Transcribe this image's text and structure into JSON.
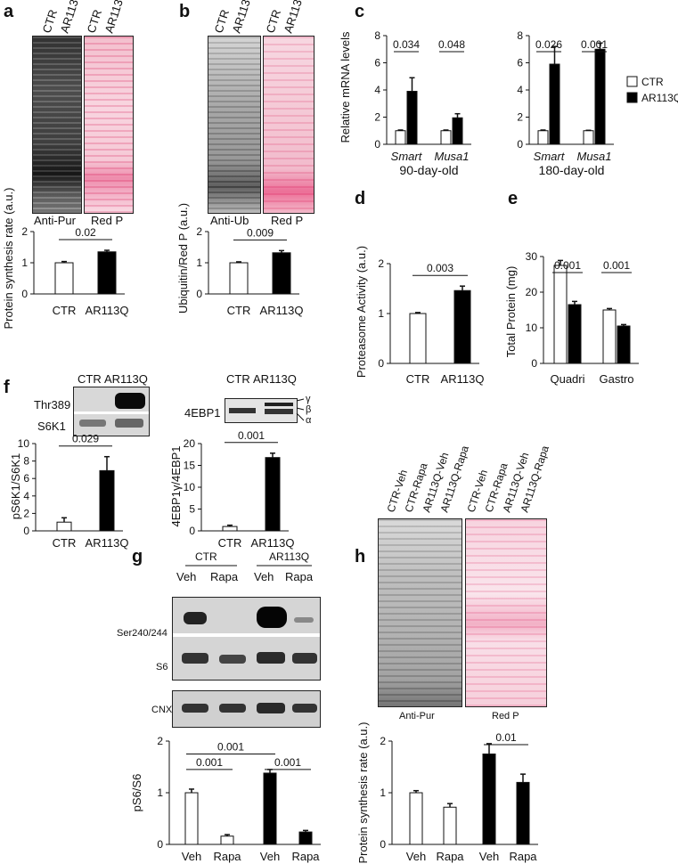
{
  "panels": {
    "a": {
      "letter": "a",
      "lanes": [
        "CTR",
        "AR113Q"
      ],
      "blot_labels": [
        "Anti-Pur",
        "Red P"
      ]
    },
    "b": {
      "letter": "b",
      "lanes": [
        "CTR",
        "AR113Q"
      ],
      "blot_labels": [
        "Anti-Ub",
        "Red P"
      ]
    },
    "c": {
      "letter": "c"
    },
    "d": {
      "letter": "d"
    },
    "e": {
      "letter": "e"
    },
    "f": {
      "letter": "f",
      "left_lanes": [
        "CTR",
        "AR113Q"
      ],
      "left_bands": [
        "Thr389",
        "S6K1"
      ],
      "right_lanes": [
        "CTR",
        "AR113Q"
      ],
      "right_band": "4EBP1",
      "isoforms": [
        "γ",
        "β",
        "α"
      ]
    },
    "g": {
      "letter": "g",
      "groups": [
        "CTR",
        "AR113Q"
      ],
      "lanes": [
        "Veh",
        "Rapa",
        "Veh",
        "Rapa"
      ],
      "bands": [
        "Ser240/244",
        "S6",
        "CNX"
      ]
    },
    "h": {
      "letter": "h",
      "lanes": [
        "CTR-Veh",
        "CTR-Rapa",
        "AR113Q-Veh",
        "AR113Q-Rapa",
        "CTR-Veh",
        "CTR-Rapa",
        "AR113Q-Veh",
        "AR113Q-Rapa"
      ],
      "blot_labels": [
        "Anti-Pur",
        "Red P"
      ]
    }
  },
  "chart_data": [
    {
      "id": "a-chart",
      "type": "bar",
      "categories": [
        "CTR",
        "AR113Q"
      ],
      "values": [
        1.0,
        1.35
      ],
      "errors": [
        0.04,
        0.05
      ],
      "ylabel": "Protein synthesis rate (a.u.)",
      "ylim": [
        0,
        2
      ],
      "yticks": [
        0,
        1,
        2
      ],
      "fills": [
        "#ffffff",
        "#000000"
      ],
      "annotations": [
        {
          "text": "0.02",
          "from": 0,
          "to": 1
        }
      ]
    },
    {
      "id": "b-chart",
      "type": "bar",
      "categories": [
        "CTR",
        "AR113Q"
      ],
      "values": [
        1.0,
        1.32
      ],
      "errors": [
        0.03,
        0.07
      ],
      "ylabel": "Ubiquitin/Red P (a.u.)",
      "ylim": [
        0,
        2
      ],
      "yticks": [
        0,
        1,
        2
      ],
      "fills": [
        "#ffffff",
        "#000000"
      ],
      "annotations": [
        {
          "text": "0.009",
          "from": 0,
          "to": 1
        }
      ]
    },
    {
      "id": "c1-chart",
      "type": "bar",
      "categories": [
        "Smart",
        "Musa1"
      ],
      "series": [
        {
          "name": "CTR",
          "values": [
            1.0,
            1.0
          ],
          "errors": [
            0.05,
            0.05
          ]
        },
        {
          "name": "AR113Q",
          "values": [
            3.9,
            1.95
          ],
          "errors": [
            1.0,
            0.3
          ]
        }
      ],
      "xlabel": "90-day-old",
      "ylabel": "Relative mRNA levels",
      "ylim": [
        0,
        8
      ],
      "yticks": [
        0,
        2,
        4,
        6,
        8
      ],
      "annotations": [
        {
          "text": "0.034",
          "group": 0
        },
        {
          "text": "0.048",
          "group": 1
        }
      ]
    },
    {
      "id": "c2-chart",
      "type": "bar",
      "categories": [
        "Smart",
        "Musa1"
      ],
      "series": [
        {
          "name": "CTR",
          "values": [
            1.0,
            1.0
          ],
          "errors": [
            0.05,
            0.03
          ]
        },
        {
          "name": "AR113Q",
          "values": [
            5.9,
            7.0
          ],
          "errors": [
            1.3,
            0.45
          ]
        }
      ],
      "xlabel": "180-day-old",
      "ylim": [
        0,
        8
      ],
      "yticks": [
        0,
        2,
        4,
        6,
        8
      ],
      "annotations": [
        {
          "text": "0.026",
          "group": 0
        },
        {
          "text": "0.001",
          "group": 1
        }
      ],
      "legend": [
        "CTR",
        "AR113Q"
      ]
    },
    {
      "id": "d-chart",
      "type": "bar",
      "categories": [
        "CTR",
        "AR113Q"
      ],
      "values": [
        1.0,
        1.46
      ],
      "errors": [
        0.02,
        0.09
      ],
      "ylabel": "Proteasome Activity (a.u.)",
      "ylim": [
        0,
        2
      ],
      "yticks": [
        0,
        1,
        2
      ],
      "fills": [
        "#ffffff",
        "#000000"
      ],
      "annotations": [
        {
          "text": "0.003",
          "from": 0,
          "to": 1
        }
      ]
    },
    {
      "id": "e-chart",
      "type": "bar",
      "categories": [
        "Quadri",
        "Gastro"
      ],
      "series": [
        {
          "name": "CTR",
          "values": [
            27.5,
            15.0
          ],
          "errors": [
            1.4,
            0.4
          ]
        },
        {
          "name": "AR113Q",
          "values": [
            16.5,
            10.5
          ],
          "errors": [
            0.9,
            0.4
          ]
        }
      ],
      "ylabel": "Total Protein (mg)",
      "ylim": [
        0,
        30
      ],
      "yticks": [
        0,
        10,
        20,
        30
      ],
      "annotations": [
        {
          "text": "0.001",
          "group": 0
        },
        {
          "text": "0.001",
          "group": 1
        }
      ]
    },
    {
      "id": "f1-chart",
      "type": "bar",
      "categories": [
        "CTR",
        "AR113Q"
      ],
      "values": [
        1.0,
        6.9
      ],
      "errors": [
        0.5,
        1.6
      ],
      "ylabel": "pS6K1/S6K1",
      "ylim": [
        0,
        10
      ],
      "yticks": [
        0,
        2,
        4,
        6,
        8,
        10
      ],
      "fills": [
        "#ffffff",
        "#000000"
      ],
      "annotations": [
        {
          "text": "0.029",
          "from": 0,
          "to": 1
        }
      ]
    },
    {
      "id": "f2-chart",
      "type": "bar",
      "categories": [
        "CTR",
        "AR113Q"
      ],
      "values": [
        1.0,
        16.8
      ],
      "errors": [
        0.3,
        1.0
      ],
      "ylabel": "4EBP1γ/4EBP1",
      "ylim": [
        0,
        20
      ],
      "yticks": [
        0,
        5,
        10,
        15,
        20
      ],
      "fills": [
        "#ffffff",
        "#000000"
      ],
      "annotations": [
        {
          "text": "0.001",
          "from": 0,
          "to": 1
        }
      ]
    },
    {
      "id": "g-chart",
      "type": "bar",
      "categories": [
        "Veh",
        "Rapa",
        "Veh",
        "Rapa"
      ],
      "values": [
        1.0,
        0.16,
        1.38,
        0.24
      ],
      "errors": [
        0.07,
        0.03,
        0.07,
        0.03
      ],
      "ylabel": "pS6/S6",
      "ylim": [
        0,
        2
      ],
      "yticks": [
        0,
        1,
        2
      ],
      "fills": [
        "#ffffff",
        "#ffffff",
        "#000000",
        "#000000"
      ],
      "annotations": [
        {
          "text": "0.001",
          "from": 0,
          "to": 1,
          "y": 1.45
        },
        {
          "text": "0.001",
          "from": 0,
          "to": 2,
          "y": 1.75
        },
        {
          "text": "0.001",
          "from": 2,
          "to": 3,
          "y": 1.45
        }
      ]
    },
    {
      "id": "h-chart",
      "type": "bar",
      "categories": [
        "Veh",
        "Rapa",
        "Veh",
        "Rapa"
      ],
      "values": [
        1.0,
        0.72,
        1.75,
        1.2
      ],
      "errors": [
        0.04,
        0.07,
        0.2,
        0.16
      ],
      "ylabel": "Protein synthesis rate (a.u.)",
      "ylim": [
        0,
        2
      ],
      "yticks": [
        0,
        1,
        2
      ],
      "fills": [
        "#ffffff",
        "#ffffff",
        "#000000",
        "#000000"
      ],
      "annotations": [
        {
          "text": "0.01",
          "from": 2,
          "to": 3,
          "y": 1.93
        }
      ]
    }
  ]
}
